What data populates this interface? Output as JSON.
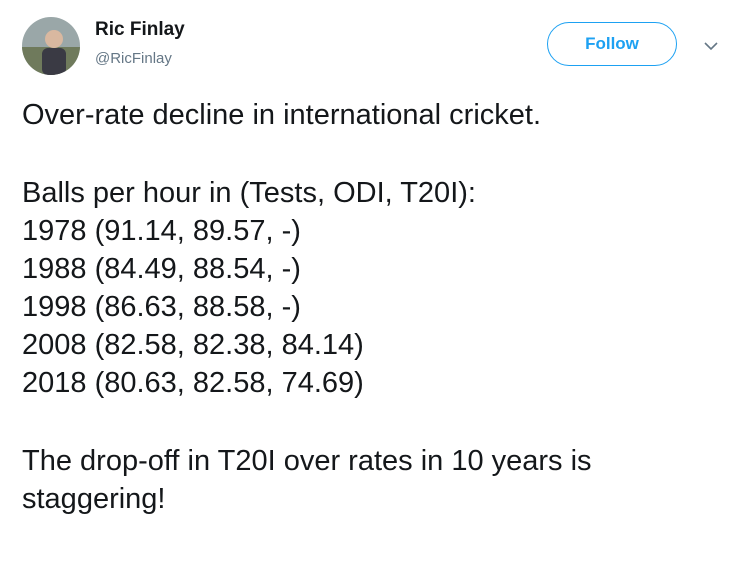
{
  "author": {
    "name": "Ric Finlay",
    "handle": "@RicFinlay"
  },
  "follow_button": "Follow",
  "tweet": {
    "paragraphs": [
      [
        "Over-rate decline in international cricket."
      ],
      [
        "Balls per hour in (Tests, ODI, T20I):",
        "1978 (91.14, 89.57, -)",
        "1988 (84.49, 88.54, -)",
        "1998 (86.63, 88.58, -)",
        "2008 (82.58, 82.38, 84.14)",
        "2018 (80.63, 82.58, 74.69)"
      ],
      [
        "The drop-off in T20I over rates in 10 years is",
        "staggering!"
      ]
    ]
  }
}
